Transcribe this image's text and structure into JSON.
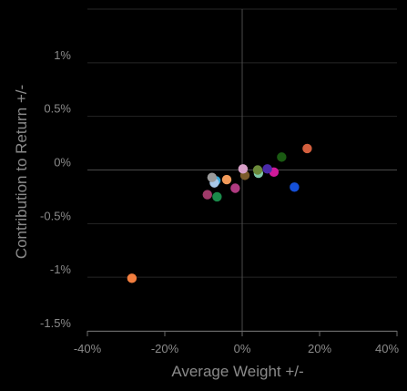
{
  "chart_data": {
    "type": "scatter",
    "title": "",
    "xlabel": "Average Weight +/-",
    "ylabel": "Contribution to Return +/-",
    "xlim": [
      -40,
      40
    ],
    "ylim": [
      -1.5,
      1.5
    ],
    "x_ticks": [
      -40,
      -20,
      0,
      20,
      40
    ],
    "x_tick_labels": [
      "-40%",
      "-20%",
      "0%",
      "20%",
      "40%"
    ],
    "y_ticks": [
      -1.5,
      -1,
      -0.5,
      0,
      0.5,
      1
    ],
    "y_tick_labels": [
      "-1.5%",
      "-1%",
      "-0.5%",
      "0%",
      "0.5%",
      "1%"
    ],
    "grid": true,
    "legend": "none",
    "points": [
      {
        "x": -28.5,
        "y": -1.01,
        "color": "#f27e3f"
      },
      {
        "x": 16.8,
        "y": 0.2,
        "color": "#d35f3e"
      },
      {
        "x": 13.5,
        "y": -0.16,
        "color": "#1550d8"
      },
      {
        "x": 10.2,
        "y": 0.12,
        "color": "#1a5a12"
      },
      {
        "x": 8.2,
        "y": -0.02,
        "color": "#d0199a"
      },
      {
        "x": 6.5,
        "y": 0.01,
        "color": "#4a2aa8"
      },
      {
        "x": 4.2,
        "y": -0.03,
        "color": "#7fc8a8"
      },
      {
        "x": 4.0,
        "y": 0.0,
        "color": "#6b8a3a"
      },
      {
        "x": 0.7,
        "y": -0.05,
        "color": "#7a5a2a"
      },
      {
        "x": 0.2,
        "y": 0.01,
        "color": "#d8a0c8"
      },
      {
        "x": -1.8,
        "y": -0.17,
        "color": "#b03a80"
      },
      {
        "x": -4.0,
        "y": -0.09,
        "color": "#f29a5a"
      },
      {
        "x": -6.5,
        "y": -0.25,
        "color": "#1a8a4a"
      },
      {
        "x": -6.8,
        "y": -0.1,
        "color": "#3aa8d8"
      },
      {
        "x": -7.2,
        "y": -0.12,
        "color": "#a8c8e8"
      },
      {
        "x": -7.8,
        "y": -0.07,
        "color": "#9a9a9a"
      },
      {
        "x": -9.0,
        "y": -0.23,
        "color": "#a03a6a"
      }
    ]
  },
  "colors": {
    "background": "#000000",
    "grid": "#262626",
    "zero_line": "#4a4a4a",
    "text": "#8a8a8a"
  }
}
